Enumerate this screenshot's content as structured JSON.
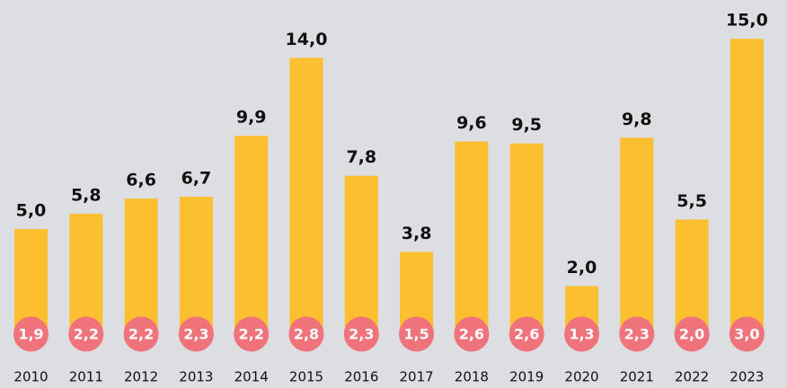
{
  "chart_data": {
    "type": "bar",
    "categories": [
      "2010",
      "2011",
      "2012",
      "2013",
      "2014",
      "2015",
      "2016",
      "2017",
      "2018",
      "2019",
      "2020",
      "2021",
      "2022",
      "2023"
    ],
    "series": [
      {
        "color": "#fbbf2f",
        "values": [
          5.0,
          5.8,
          6.6,
          6.7,
          9.9,
          14.0,
          7.8,
          3.8,
          9.6,
          9.5,
          2.0,
          9.8,
          5.5,
          15.0
        ],
        "value_labels": [
          "5,0",
          "5,8",
          "6,6",
          "6,7",
          "9,9",
          "14,0",
          "7,8",
          "3,8",
          "9,6",
          "9,5",
          "2,0",
          "9,8",
          "5,5",
          "15,0"
        ]
      },
      {
        "color": "#f0727a",
        "values": [
          1.9,
          2.2,
          2.2,
          2.3,
          2.2,
          2.8,
          2.3,
          1.5,
          2.6,
          2.6,
          1.3,
          2.3,
          2.0,
          3.0
        ],
        "value_labels": [
          "1,9",
          "2,2",
          "2,2",
          "2,3",
          "2,2",
          "2,8",
          "2,3",
          "1,5",
          "2,6",
          "2,6",
          "1,3",
          "2,3",
          "2,0",
          "3,0"
        ]
      }
    ],
    "ylim": [
      0,
      16
    ]
  }
}
